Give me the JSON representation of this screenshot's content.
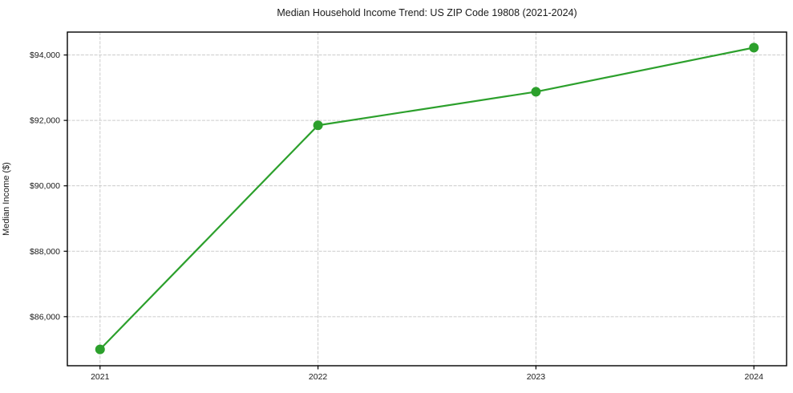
{
  "chart_data": {
    "type": "line",
    "title": "Median Household Income Trend: US ZIP Code 19808 (2021-2024)",
    "xlabel": "",
    "ylabel": "Median Income ($)",
    "x": [
      2021,
      2022,
      2023,
      2024
    ],
    "x_tick_labels": [
      "2021",
      "2022",
      "2023",
      "2024"
    ],
    "series": [
      {
        "name": "Median Household Income",
        "values": [
          85000,
          91850,
          92875,
          94225
        ]
      }
    ],
    "y_ticks": [
      86000,
      88000,
      90000,
      92000,
      94000
    ],
    "y_tick_labels": [
      "$86,000",
      "$88,000",
      "$90,000",
      "$92,000",
      "$94,000"
    ],
    "xlim": [
      2020.85,
      2024.15
    ],
    "ylim": [
      84500,
      94700
    ],
    "grid": true,
    "grid_line_style": "dashed",
    "legend": "none",
    "colors": {
      "line": "#2ca02c",
      "marker": "#2ca02c",
      "grid": "#cccccc",
      "frame": "#000000",
      "text": "#1a1a1a",
      "background": "#ffffff"
    }
  }
}
